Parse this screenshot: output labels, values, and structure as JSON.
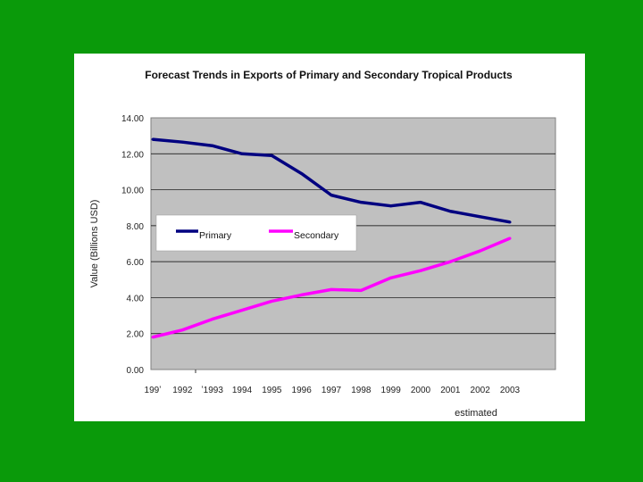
{
  "chart_data": {
    "type": "line",
    "title": "Forecast Trends in Exports of Primary and Secondary Tropical Products",
    "xlabel": "estimated",
    "ylabel": "Value (Billions USD)",
    "categories": [
      "1991",
      "1992",
      "1993",
      "1994",
      "1995",
      "1996",
      "1997",
      "1998",
      "1999",
      "2000",
      "2001",
      "2002",
      "2003"
    ],
    "category_labels": [
      "199ʼ",
      "1992",
      "ʼ1993",
      "1994",
      "1995",
      "1996",
      "1997",
      "1998",
      "1999",
      "2000",
      "2001",
      "2002",
      "2003"
    ],
    "ylim": [
      0,
      14
    ],
    "yticks": [
      "0.00",
      "2.00",
      "4.00",
      "6.00",
      "8.00",
      "10.00",
      "12.00",
      "14.00"
    ],
    "series": [
      {
        "name": "Primary",
        "color": "#000080",
        "values": [
          12.8,
          12.65,
          12.45,
          12.0,
          11.9,
          10.9,
          9.7,
          9.3,
          9.1,
          9.3,
          8.8,
          8.5,
          8.2
        ]
      },
      {
        "name": "Secondary",
        "color": "#ff00ff",
        "values": [
          1.8,
          2.2,
          2.8,
          3.3,
          3.8,
          4.15,
          4.45,
          4.4,
          5.1,
          5.5,
          6.0,
          6.6,
          7.3
        ]
      }
    ],
    "legend": "inside-center-left"
  }
}
